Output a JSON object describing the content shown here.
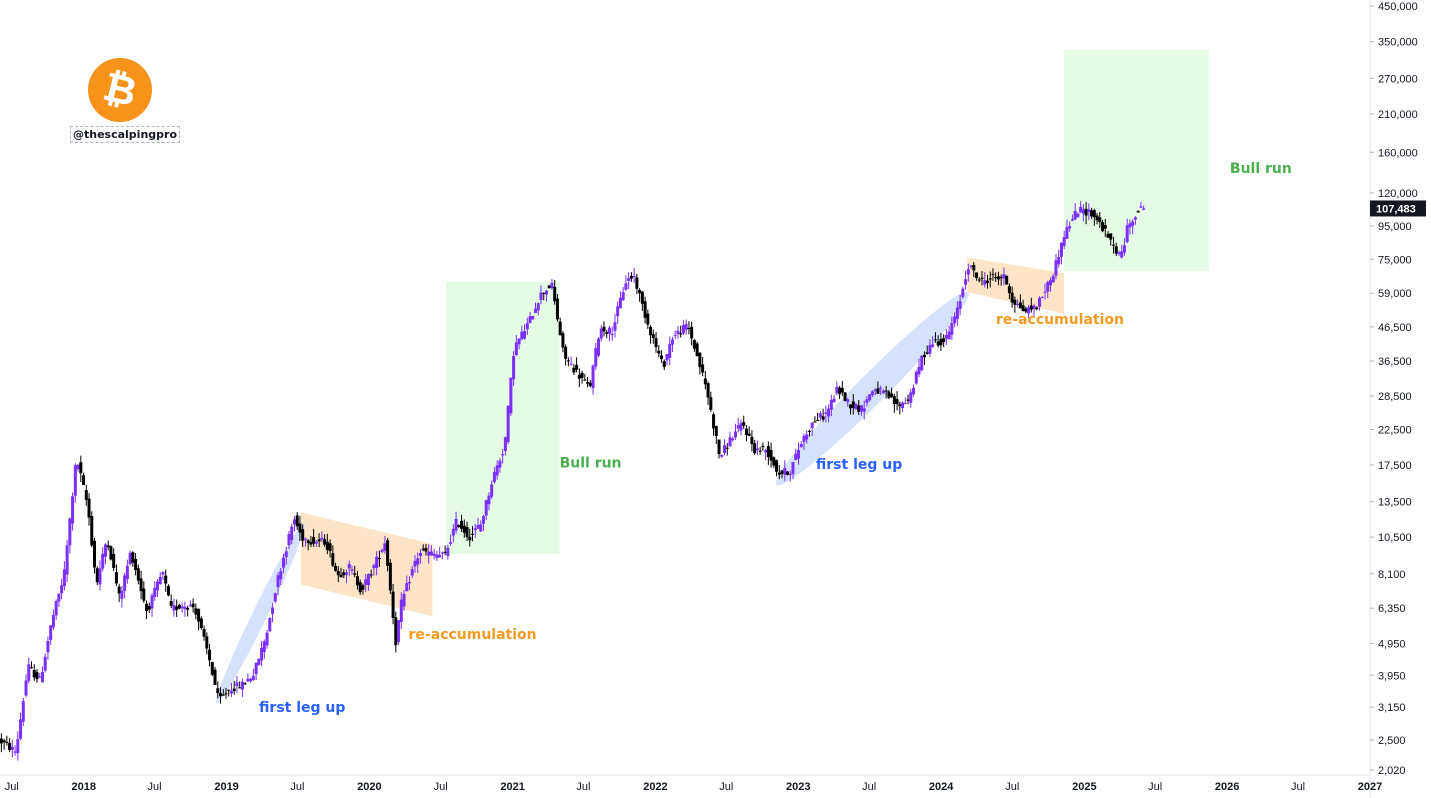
{
  "branding": {
    "handle": "@thescalpingpro",
    "logo_icon": "bitcoin-icon"
  },
  "colors": {
    "bull_candle": "#7b2ff7",
    "bear_candle": "#000000",
    "bull_zone": "#e5fbe5",
    "reacc_zone": "#fde4c6",
    "leg_zone": "#d6e2fb",
    "bull_text": "#4caf50",
    "reacc_text": "#f59b23",
    "leg_text": "#2962ff"
  },
  "chart_data": {
    "type": "candlestick",
    "symbol": "BTC",
    "y_scale": "log",
    "ylim": [
      1950,
      470000
    ],
    "y_ticks": [
      2020,
      2500,
      3150,
      3950,
      4950,
      6350,
      8100,
      10500,
      13500,
      17500,
      22500,
      28500,
      36500,
      46500,
      59000,
      75000,
      95000,
      120000,
      160000,
      210000,
      270000,
      350000,
      450000
    ],
    "y_tick_labels": [
      "2,020",
      "2,500",
      "3,150",
      "3,950",
      "4,950",
      "6,350",
      "8,100",
      "10,500",
      "13,500",
      "17,500",
      "22,500",
      "28,500",
      "36,500",
      "46,500",
      "59,000",
      "75,000",
      "95,000",
      "120,000",
      "160,000",
      "210,000",
      "270,000",
      "350,000",
      "450,000"
    ],
    "last_price": 107483,
    "last_price_label": "107,483",
    "xlim": [
      "2017-06-01",
      "2027-01-01"
    ],
    "x_ticks": [
      {
        "date": "2017-07-01",
        "label": "Jul",
        "bold": false
      },
      {
        "date": "2018-01-01",
        "label": "2018",
        "bold": true
      },
      {
        "date": "2018-07-01",
        "label": "Jul",
        "bold": false
      },
      {
        "date": "2019-01-01",
        "label": "2019",
        "bold": true
      },
      {
        "date": "2019-07-01",
        "label": "Jul",
        "bold": false
      },
      {
        "date": "2020-01-01",
        "label": "2020",
        "bold": true
      },
      {
        "date": "2020-07-01",
        "label": "Jul",
        "bold": false
      },
      {
        "date": "2021-01-01",
        "label": "2021",
        "bold": true
      },
      {
        "date": "2021-07-01",
        "label": "Jul",
        "bold": false
      },
      {
        "date": "2022-01-01",
        "label": "2022",
        "bold": true
      },
      {
        "date": "2022-07-01",
        "label": "Jul",
        "bold": false
      },
      {
        "date": "2023-01-01",
        "label": "2023",
        "bold": true
      },
      {
        "date": "2023-07-01",
        "label": "Jul",
        "bold": false
      },
      {
        "date": "2024-01-01",
        "label": "2024",
        "bold": true
      },
      {
        "date": "2024-07-01",
        "label": "Jul",
        "bold": false
      },
      {
        "date": "2025-01-01",
        "label": "2025",
        "bold": true
      },
      {
        "date": "2025-07-01",
        "label": "Jul",
        "bold": false
      },
      {
        "date": "2026-01-01",
        "label": "2026",
        "bold": true
      },
      {
        "date": "2026-07-01",
        "label": "Jul",
        "bold": false
      },
      {
        "date": "2027-01-01",
        "label": "2027",
        "bold": true
      }
    ],
    "price_path": [
      [
        "2017-06-01",
        2500
      ],
      [
        "2017-07-15",
        2300
      ],
      [
        "2017-08-15",
        4200
      ],
      [
        "2017-09-15",
        3800
      ],
      [
        "2017-10-15",
        5800
      ],
      [
        "2017-11-15",
        8000
      ],
      [
        "2017-12-17",
        18500
      ],
      [
        "2018-01-15",
        13000
      ],
      [
        "2018-02-06",
        7500
      ],
      [
        "2018-03-05",
        10500
      ],
      [
        "2018-04-06",
        6800
      ],
      [
        "2018-05-05",
        9500
      ],
      [
        "2018-06-15",
        6200
      ],
      [
        "2018-07-25",
        8200
      ],
      [
        "2018-08-15",
        6300
      ],
      [
        "2018-09-15",
        6500
      ],
      [
        "2018-10-15",
        6400
      ],
      [
        "2018-11-20",
        4500
      ],
      [
        "2018-12-15",
        3300
      ],
      [
        "2019-01-15",
        3600
      ],
      [
        "2019-02-15",
        3700
      ],
      [
        "2019-03-15",
        4000
      ],
      [
        "2019-04-15",
        5200
      ],
      [
        "2019-05-15",
        7800
      ],
      [
        "2019-06-26",
        12000
      ],
      [
        "2019-07-15",
        10500
      ],
      [
        "2019-08-15",
        10200
      ],
      [
        "2019-09-15",
        10200
      ],
      [
        "2019-10-15",
        8000
      ],
      [
        "2019-11-15",
        8500
      ],
      [
        "2019-12-15",
        7200
      ],
      [
        "2020-01-15",
        8500
      ],
      [
        "2020-02-14",
        10200
      ],
      [
        "2020-03-12",
        5000
      ],
      [
        "2020-03-25",
        6500
      ],
      [
        "2020-04-30",
        8800
      ],
      [
        "2020-05-15",
        9500
      ],
      [
        "2020-06-15",
        9300
      ],
      [
        "2020-07-15",
        9200
      ],
      [
        "2020-08-15",
        11800
      ],
      [
        "2020-09-15",
        10500
      ],
      [
        "2020-10-15",
        11500
      ],
      [
        "2020-11-15",
        16000
      ],
      [
        "2020-12-15",
        20000
      ],
      [
        "2021-01-08",
        40000
      ],
      [
        "2021-02-15",
        48000
      ],
      [
        "2021-03-15",
        58000
      ],
      [
        "2021-04-14",
        63000
      ],
      [
        "2021-05-15",
        38000
      ],
      [
        "2021-06-15",
        34000
      ],
      [
        "2021-07-20",
        30000
      ],
      [
        "2021-08-15",
        46000
      ],
      [
        "2021-09-15",
        45000
      ],
      [
        "2021-10-20",
        64000
      ],
      [
        "2021-11-10",
        67000
      ],
      [
        "2021-12-15",
        48000
      ],
      [
        "2022-01-24",
        35000
      ],
      [
        "2022-02-15",
        43000
      ],
      [
        "2022-03-28",
        47000
      ],
      [
        "2022-04-15",
        40000
      ],
      [
        "2022-05-15",
        30000
      ],
      [
        "2022-06-18",
        18500
      ],
      [
        "2022-07-15",
        21000
      ],
      [
        "2022-08-15",
        23500
      ],
      [
        "2022-09-15",
        19500
      ],
      [
        "2022-10-15",
        19500
      ],
      [
        "2022-11-15",
        16500
      ],
      [
        "2022-12-15",
        16800
      ],
      [
        "2023-01-15",
        21000
      ],
      [
        "2023-02-15",
        24000
      ],
      [
        "2023-03-15",
        25000
      ],
      [
        "2023-04-15",
        30000
      ],
      [
        "2023-05-15",
        27000
      ],
      [
        "2023-06-15",
        26000
      ],
      [
        "2023-07-15",
        30000
      ],
      [
        "2023-08-15",
        29000
      ],
      [
        "2023-09-15",
        26500
      ],
      [
        "2023-10-15",
        28000
      ],
      [
        "2023-11-15",
        37000
      ],
      [
        "2023-12-15",
        42000
      ],
      [
        "2024-01-15",
        42000
      ],
      [
        "2024-02-15",
        52000
      ],
      [
        "2024-03-14",
        72000
      ],
      [
        "2024-04-15",
        64000
      ],
      [
        "2024-05-15",
        66000
      ],
      [
        "2024-06-15",
        66000
      ],
      [
        "2024-07-05",
        56000
      ],
      [
        "2024-08-05",
        52000
      ],
      [
        "2024-09-06",
        54000
      ],
      [
        "2024-10-15",
        67000
      ],
      [
        "2024-11-15",
        90000
      ],
      [
        "2024-12-17",
        106000
      ],
      [
        "2025-01-20",
        105000
      ],
      [
        "2025-02-15",
        96000
      ],
      [
        "2025-03-15",
        84000
      ],
      [
        "2025-04-08",
        76000
      ],
      [
        "2025-04-25",
        94000
      ],
      [
        "2025-05-15",
        104000
      ],
      [
        "2025-06-01",
        107483
      ]
    ],
    "annotations": [
      {
        "label": "Bull run",
        "text_date": "2021-05-01",
        "text_price": 17200,
        "color_key": "bull_text"
      },
      {
        "label": "Bull run",
        "text_date": "2026-01-08",
        "text_price": 138000,
        "color_key": "bull_text"
      },
      {
        "label": "re-accumulation",
        "text_date": "2020-04-10",
        "text_price": 5100,
        "color_key": "reacc_text"
      },
      {
        "label": "re-accumulation",
        "text_date": "2024-05-20",
        "text_price": 47500,
        "color_key": "reacc_text"
      },
      {
        "label": "first leg up",
        "text_date": "2019-03-25",
        "text_price": 3050,
        "color_key": "leg_text"
      },
      {
        "label": "first leg up",
        "text_date": "2023-02-15",
        "text_price": 17000,
        "color_key": "leg_text"
      }
    ],
    "zones": [
      {
        "kind": "bull",
        "from": "2020-07-15",
        "to": "2021-05-01",
        "low": 9300,
        "high": 64000
      },
      {
        "kind": "bull",
        "from": "2024-11-10",
        "to": "2025-11-15",
        "low": 69000,
        "high": 330000
      },
      {
        "kind": "reacc",
        "p1": [
          "2019-07-10",
          12500
        ],
        "p2": [
          "2020-06-10",
          10000
        ],
        "p3": [
          "2020-06-10",
          6000
        ],
        "p4": [
          "2019-07-10",
          7500
        ]
      },
      {
        "kind": "reacc",
        "p1": [
          "2024-03-08",
          76000
        ],
        "p2": [
          "2024-11-10",
          68000
        ],
        "p3": [
          "2024-11-10",
          51000
        ],
        "p4": [
          "2024-03-08",
          59500
        ]
      },
      {
        "kind": "leg",
        "p1": [
          "2018-12-15",
          3400
        ],
        "p2": [
          "2019-07-10",
          11000
        ],
        "width_days": 75
      },
      {
        "kind": "leg",
        "p1": [
          "2022-11-20",
          15800
        ],
        "p2": [
          "2024-02-25",
          57000
        ],
        "width_days": 150
      }
    ]
  }
}
